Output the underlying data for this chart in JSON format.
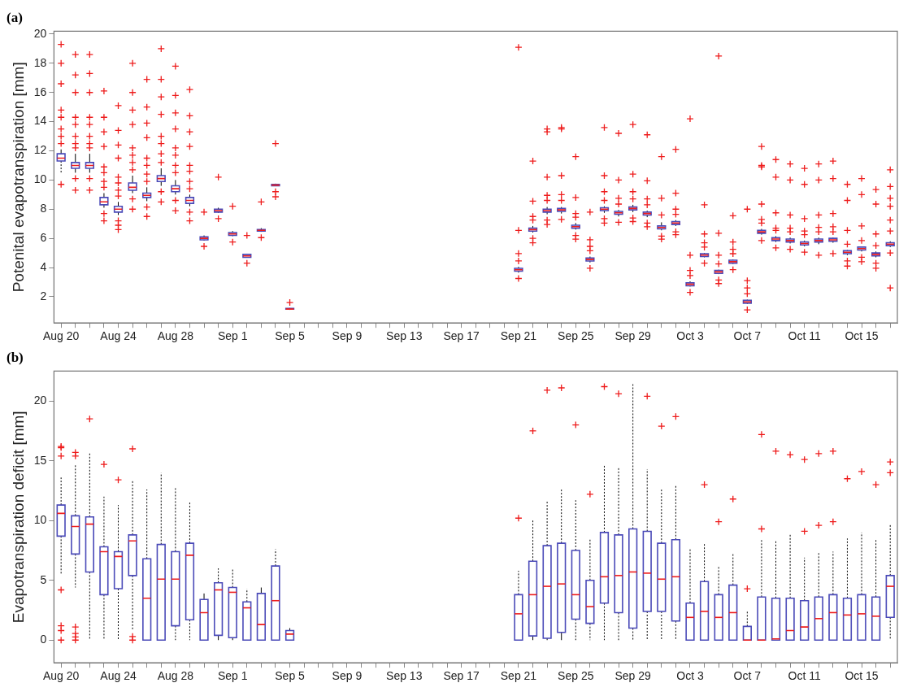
{
  "chart_data": [
    {
      "type": "box",
      "title": "(a)",
      "ylabel": "Potenital evapotranspiration [mm]",
      "color": "#4a4ab8",
      "ylim": [
        0.2,
        20.2
      ],
      "yticks": [
        2,
        4,
        6,
        8,
        10,
        12,
        14,
        16,
        18,
        20
      ],
      "categories": [
        "Aug 20",
        null,
        null,
        null,
        "Aug 24",
        null,
        null,
        null,
        "Aug 28",
        null,
        null,
        null,
        "Sep 1",
        null,
        null,
        null,
        "Sep 5",
        null,
        null,
        null,
        "Sep 9",
        null,
        null,
        null,
        "Sep 13",
        null,
        null,
        null,
        "Sep 17",
        null,
        null,
        null,
        "Sep 21",
        null,
        null,
        null,
        "Sep 25",
        null,
        null,
        null,
        "Sep 29",
        null,
        null,
        null,
        "Oct 3",
        null,
        null,
        null,
        "Oct 7",
        null,
        null,
        null,
        "Oct 11",
        null,
        null,
        null,
        "Oct 15",
        null,
        null
      ],
      "boxes": [
        {
          "low": 10.5,
          "q1": 11.3,
          "median": 11.5,
          "q3": 11.8,
          "high": 12.1,
          "outliers": [
            19.3,
            18.0,
            16.6,
            14.8,
            14.3,
            13.5,
            13.0,
            12.5,
            9.7
          ]
        },
        {
          "low": 10.5,
          "q1": 10.8,
          "median": 11.0,
          "q3": 11.2,
          "high": 11.8,
          "outliers": [
            18.6,
            17.2,
            16.0,
            14.3,
            13.8,
            13.0,
            12.5,
            12.2,
            10.1,
            9.3
          ]
        },
        {
          "low": 10.5,
          "q1": 10.8,
          "median": 11.0,
          "q3": 11.2,
          "high": 11.8,
          "outliers": [
            18.6,
            17.3,
            16.0,
            14.3,
            13.8,
            13.0,
            12.5,
            12.2,
            10.1,
            9.3
          ]
        },
        {
          "low": 8.1,
          "q1": 8.3,
          "median": 8.5,
          "q3": 8.8,
          "high": 9.1,
          "outliers": [
            16.1,
            14.3,
            13.3,
            12.3,
            10.9,
            10.5,
            9.9,
            9.5,
            7.7,
            7.2
          ]
        },
        {
          "low": 7.6,
          "q1": 7.8,
          "median": 8.0,
          "q3": 8.2,
          "high": 8.5,
          "outliers": [
            15.1,
            13.4,
            12.4,
            11.5,
            10.2,
            9.8,
            9.3,
            8.9,
            7.2,
            6.9,
            6.6
          ]
        },
        {
          "low": 9.1,
          "q1": 9.3,
          "median": 9.5,
          "q3": 9.8,
          "high": 10.3,
          "outliers": [
            18.0,
            16.0,
            14.8,
            13.8,
            12.2,
            11.7,
            11.2,
            10.7,
            8.7,
            8.0
          ]
        },
        {
          "low": 8.55,
          "q1": 8.8,
          "median": 8.95,
          "q3": 9.1,
          "high": 9.5,
          "outliers": [
            16.9,
            15.0,
            13.9,
            12.9,
            11.5,
            11.0,
            10.4,
            9.9,
            8.15,
            7.5
          ]
        },
        {
          "low": 9.6,
          "q1": 9.9,
          "median": 10.1,
          "q3": 10.3,
          "high": 10.8,
          "outliers": [
            19.0,
            16.9,
            15.7,
            14.5,
            13.0,
            12.5,
            11.8,
            11.2,
            9.2,
            8.5
          ]
        },
        {
          "low": 9.0,
          "q1": 9.2,
          "median": 9.4,
          "q3": 9.6,
          "high": 10.0,
          "outliers": [
            17.8,
            15.8,
            14.6,
            13.5,
            12.2,
            11.7,
            11.0,
            10.5,
            8.6,
            7.9
          ]
        },
        {
          "low": 8.2,
          "q1": 8.4,
          "median": 8.6,
          "q3": 8.8,
          "high": 9.0,
          "outliers": [
            16.2,
            14.4,
            13.3,
            12.3,
            11.0,
            10.6,
            9.9,
            9.4,
            7.8,
            7.2
          ]
        },
        {
          "low": 5.85,
          "q1": 5.9,
          "median": 6.0,
          "q3": 6.1,
          "high": 6.2,
          "outliers": [
            7.8,
            5.45
          ]
        },
        {
          "low": 7.75,
          "q1": 7.8,
          "median": 7.9,
          "q3": 8.0,
          "high": 8.1,
          "outliers": [
            10.2,
            7.35
          ]
        },
        {
          "low": 6.15,
          "q1": 6.2,
          "median": 6.3,
          "q3": 6.4,
          "high": 6.5,
          "outliers": [
            8.2,
            5.75
          ]
        },
        {
          "low": 4.68,
          "q1": 4.7,
          "median": 4.8,
          "q3": 4.9,
          "high": 4.95,
          "outliers": [
            6.2,
            4.3
          ]
        },
        {
          "low": 6.45,
          "q1": 6.5,
          "median": 6.55,
          "q3": 6.6,
          "high": 6.7,
          "outliers": [
            8.5,
            6.05
          ]
        },
        {
          "low": 9.58,
          "q1": 9.6,
          "median": 9.65,
          "q3": 9.7,
          "high": 9.75,
          "outliers": [
            12.5,
            9.2,
            8.85
          ]
        },
        {
          "low": 1.1,
          "q1": 1.15,
          "median": 1.15,
          "q3": 1.2,
          "high": 1.22,
          "outliers": [
            1.6
          ]
        },
        null,
        null,
        null,
        null,
        null,
        null,
        null,
        null,
        null,
        null,
        null,
        null,
        null,
        null,
        null,
        {
          "low": 3.65,
          "q1": 3.75,
          "median": 3.85,
          "q3": 3.95,
          "high": 4.05,
          "outliers": [
            19.1,
            6.55,
            4.96,
            4.45,
            3.25
          ]
        },
        {
          "low": 6.4,
          "q1": 6.5,
          "median": 6.6,
          "q3": 6.7,
          "high": 6.85,
          "outliers": [
            11.3,
            8.55,
            7.5,
            7.25,
            6.0,
            5.7
          ]
        },
        {
          "low": 7.65,
          "q1": 7.8,
          "median": 7.9,
          "q3": 8.0,
          "high": 8.15,
          "outliers": [
            13.5,
            13.3,
            10.2,
            8.95,
            8.6,
            7.25,
            6.95
          ]
        },
        {
          "low": 7.7,
          "q1": 7.85,
          "median": 7.95,
          "q3": 8.05,
          "high": 8.15,
          "outliers": [
            13.6,
            13.5,
            10.3,
            9.0,
            8.6,
            7.3
          ]
        },
        {
          "low": 6.6,
          "q1": 6.7,
          "median": 6.8,
          "q3": 6.9,
          "high": 7.05,
          "outliers": [
            11.6,
            8.8,
            7.7,
            7.45,
            6.2,
            5.95
          ]
        },
        {
          "low": 4.35,
          "q1": 4.45,
          "median": 4.55,
          "q3": 4.65,
          "high": 4.75,
          "outliers": [
            7.8,
            5.9,
            5.45,
            5.15,
            3.95
          ]
        },
        {
          "low": 7.75,
          "q1": 7.9,
          "median": 8.0,
          "q3": 8.1,
          "high": 8.2,
          "outliers": [
            13.6,
            10.3,
            9.2,
            8.6,
            7.35,
            7.05
          ]
        },
        {
          "low": 7.5,
          "q1": 7.65,
          "median": 7.75,
          "q3": 7.85,
          "high": 7.95,
          "outliers": [
            13.2,
            10.0,
            8.75,
            8.35,
            7.1
          ]
        },
        {
          "low": 7.8,
          "q1": 7.95,
          "median": 8.05,
          "q3": 8.15,
          "high": 8.3,
          "outliers": [
            13.8,
            10.4,
            9.2,
            8.7,
            7.4,
            7.15
          ]
        },
        {
          "low": 7.45,
          "q1": 7.6,
          "median": 7.7,
          "q3": 7.8,
          "high": 7.9,
          "outliers": [
            13.1,
            9.95,
            8.7,
            8.3,
            7.05,
            6.8
          ]
        },
        {
          "low": 6.55,
          "q1": 6.65,
          "median": 6.75,
          "q3": 6.85,
          "high": 7.1,
          "outliers": [
            11.6,
            8.75,
            7.6,
            6.15,
            5.95
          ]
        },
        {
          "low": 6.85,
          "q1": 6.95,
          "median": 7.05,
          "q3": 7.15,
          "high": 7.25,
          "outliers": [
            12.1,
            9.1,
            8.0,
            7.65,
            6.45,
            6.25
          ]
        },
        {
          "low": 2.7,
          "q1": 2.75,
          "median": 2.85,
          "q3": 2.95,
          "high": 3.05,
          "outliers": [
            14.2,
            4.85,
            3.8,
            3.45,
            2.3
          ]
        },
        {
          "low": 4.7,
          "q1": 4.75,
          "median": 4.85,
          "q3": 4.95,
          "high": 5.0,
          "outliers": [
            8.3,
            6.3,
            5.7,
            5.4,
            4.3
          ]
        },
        {
          "low": 3.55,
          "q1": 3.6,
          "median": 3.7,
          "q3": 3.8,
          "high": 3.85,
          "outliers": [
            18.5,
            6.35,
            4.85,
            4.25,
            3.15,
            2.9
          ]
        },
        {
          "low": 4.25,
          "q1": 4.3,
          "median": 4.4,
          "q3": 4.5,
          "high": 4.55,
          "outliers": [
            7.55,
            5.75,
            5.25,
            4.95,
            3.85
          ]
        },
        {
          "low": 1.5,
          "q1": 1.55,
          "median": 1.65,
          "q3": 1.75,
          "high": 1.8,
          "outliers": [
            8.0,
            3.1,
            2.6,
            2.2,
            1.1
          ]
        },
        {
          "low": 6.25,
          "q1": 6.35,
          "median": 6.45,
          "q3": 6.55,
          "high": 6.65,
          "outliers": [
            12.3,
            11.0,
            10.9,
            8.35,
            7.3,
            7.05,
            5.85
          ]
        },
        {
          "low": 5.75,
          "q1": 5.85,
          "median": 5.95,
          "q3": 6.05,
          "high": 6.15,
          "outliers": [
            11.4,
            10.2,
            7.75,
            6.7,
            6.55,
            5.35
          ]
        },
        {
          "low": 5.65,
          "q1": 5.75,
          "median": 5.85,
          "q3": 5.95,
          "high": 6.05,
          "outliers": [
            11.1,
            10.0,
            7.6,
            6.7,
            6.45,
            5.25
          ]
        },
        {
          "low": 5.45,
          "q1": 5.55,
          "median": 5.65,
          "q3": 5.75,
          "high": 5.85,
          "outliers": [
            10.8,
            9.7,
            7.35,
            6.5,
            6.25,
            5.05
          ]
        },
        {
          "low": 5.6,
          "q1": 5.75,
          "median": 5.85,
          "q3": 5.95,
          "high": 6.05,
          "outliers": [
            11.1,
            10.0,
            7.6,
            6.75,
            6.45,
            4.85
          ]
        },
        {
          "low": 5.7,
          "q1": 5.8,
          "median": 5.9,
          "q3": 6.0,
          "high": 6.05,
          "outliers": [
            11.3,
            10.1,
            7.7,
            6.8,
            6.45,
            4.96
          ]
        },
        {
          "low": 4.85,
          "q1": 4.95,
          "median": 5.05,
          "q3": 5.15,
          "high": 5.2,
          "outliers": [
            9.7,
            8.6,
            6.55,
            5.6,
            4.45,
            4.1
          ]
        },
        {
          "low": 5.1,
          "q1": 5.2,
          "median": 5.3,
          "q3": 5.4,
          "high": 5.45,
          "outliers": [
            10.1,
            9.0,
            6.85,
            5.85,
            4.7,
            4.4
          ]
        },
        {
          "low": 4.7,
          "q1": 4.8,
          "median": 4.9,
          "q3": 5.0,
          "high": 5.1,
          "outliers": [
            9.35,
            8.35,
            6.3,
            5.5,
            4.3,
            3.95
          ]
        },
        {
          "low": 5.4,
          "q1": 5.5,
          "median": 5.6,
          "q3": 5.7,
          "high": 5.8,
          "outliers": [
            10.7,
            9.55,
            8.75,
            8.2,
            7.25,
            6.5,
            5.0,
            2.6
          ]
        }
      ]
    },
    {
      "type": "box",
      "title": "(b)",
      "ylabel": "Evapotranspiration deficit [mm]",
      "color": "#4a4ab8",
      "ylim": [
        -1.9,
        22.5
      ],
      "yticks": [
        0,
        5,
        10,
        15,
        20
      ],
      "categories": [
        "Aug 20",
        null,
        null,
        null,
        "Aug 24",
        null,
        null,
        null,
        "Aug 28",
        null,
        null,
        null,
        "Sep 1",
        null,
        null,
        null,
        "Sep 5",
        null,
        null,
        null,
        "Sep 9",
        null,
        null,
        null,
        "Sep 13",
        null,
        null,
        null,
        "Sep 17",
        null,
        null,
        null,
        "Sep 21",
        null,
        null,
        null,
        "Sep 25",
        null,
        null,
        null,
        "Sep 29",
        null,
        null,
        null,
        "Oct 3",
        null,
        null,
        null,
        "Oct 7",
        null,
        null,
        null,
        "Oct 11",
        null,
        null,
        null,
        "Oct 15",
        null,
        null
      ],
      "boxes": [
        {
          "low": 5.5,
          "q1": 8.7,
          "median": 10.6,
          "q3": 11.3,
          "high": 13.6,
          "outliers": [
            16.2,
            16.1,
            15.4,
            4.2,
            1.2,
            0.8,
            0
          ]
        },
        {
          "low": 4.4,
          "q1": 7.2,
          "median": 9.5,
          "q3": 10.4,
          "high": 14.7,
          "outliers": [
            15.7,
            15.4,
            1.1,
            0.55,
            0.27,
            0
          ]
        },
        {
          "low": 0,
          "q1": 5.7,
          "median": 9.7,
          "q3": 10.3,
          "high": 15.7,
          "outliers": [
            18.5
          ]
        },
        {
          "low": 0,
          "q1": 3.8,
          "median": 7.4,
          "q3": 7.8,
          "high": 12.0,
          "outliers": [
            14.7
          ]
        },
        {
          "low": 0,
          "q1": 4.3,
          "median": 7.0,
          "q3": 7.4,
          "high": 11.3,
          "outliers": [
            13.4
          ]
        },
        {
          "low": 0.9,
          "q1": 5.4,
          "median": 8.3,
          "q3": 8.8,
          "high": 13.4,
          "outliers": [
            16.0,
            0.3,
            0
          ]
        },
        {
          "low": 0,
          "q1": 0,
          "median": 3.5,
          "q3": 6.8,
          "high": 12.6
        },
        {
          "low": 0,
          "q1": 0,
          "median": 5.1,
          "q3": 8.0,
          "high": 14.0
        },
        {
          "low": 0,
          "q1": 1.2,
          "median": 5.1,
          "q3": 7.4,
          "high": 12.8
        },
        {
          "low": 0,
          "q1": 1.7,
          "median": 7.1,
          "q3": 8.1,
          "high": 11.6
        },
        {
          "low": 0,
          "q1": 0,
          "median": 2.3,
          "q3": 3.4,
          "high": 3.9
        },
        {
          "low": 0,
          "q1": 0.4,
          "median": 4.2,
          "q3": 4.8,
          "high": 6.0
        },
        {
          "low": 0,
          "q1": 0.2,
          "median": 4.0,
          "q3": 4.4,
          "high": 6.0
        },
        {
          "low": 0,
          "q1": 0,
          "median": 2.7,
          "q3": 3.2,
          "high": 4.3
        },
        {
          "low": 0,
          "q1": 0,
          "median": 1.3,
          "q3": 3.9,
          "high": 4.4
        },
        {
          "low": 0,
          "q1": 0,
          "median": 3.3,
          "q3": 6.2,
          "high": 7.6
        },
        {
          "low": 0,
          "q1": 0,
          "median": 0.5,
          "q3": 0.8,
          "high": 1.0
        },
        null,
        null,
        null,
        null,
        null,
        null,
        null,
        null,
        null,
        null,
        null,
        null,
        null,
        null,
        null,
        {
          "low": 0,
          "q1": 0,
          "median": 2.2,
          "q3": 3.8,
          "high": 5.8,
          "outliers": [
            10.2
          ]
        },
        {
          "low": 0,
          "q1": 0.35,
          "median": 3.8,
          "q3": 6.6,
          "high": 10.0,
          "outliers": [
            17.5
          ]
        },
        {
          "low": 0,
          "q1": 0.15,
          "median": 4.5,
          "q3": 7.9,
          "high": 11.7,
          "outliers": [
            20.9
          ]
        },
        {
          "low": 0,
          "q1": 0.65,
          "median": 4.7,
          "q3": 8.1,
          "high": 12.7,
          "outliers": [
            21.1
          ]
        },
        {
          "low": 0,
          "q1": 1.75,
          "median": 3.8,
          "q3": 7.5,
          "high": 11.7,
          "outliers": [
            18.0
          ]
        },
        {
          "low": 0,
          "q1": 1.4,
          "median": 2.8,
          "q3": 5.0,
          "high": 8.4,
          "outliers": [
            12.2
          ]
        },
        {
          "low": 0,
          "q1": 3.1,
          "median": 5.3,
          "q3": 9.0,
          "high": 14.6,
          "outliers": [
            21.2
          ]
        },
        {
          "low": 0,
          "q1": 2.3,
          "median": 5.4,
          "q3": 8.8,
          "high": 14.5,
          "outliers": [
            20.6
          ]
        },
        {
          "low": 0,
          "q1": 1.0,
          "median": 5.7,
          "q3": 9.3,
          "high": 21.4
        },
        {
          "low": 0,
          "q1": 2.4,
          "median": 5.6,
          "q3": 9.1,
          "high": 14.3,
          "outliers": [
            20.4
          ]
        },
        {
          "low": 0,
          "q1": 2.4,
          "median": 5.1,
          "q3": 8.1,
          "high": 12.6,
          "outliers": [
            17.9
          ]
        },
        {
          "low": 0,
          "q1": 1.6,
          "median": 5.3,
          "q3": 8.4,
          "high": 13.0,
          "outliers": [
            18.7
          ]
        },
        {
          "low": 0,
          "q1": 0,
          "median": 1.9,
          "q3": 3.1,
          "high": 7.6
        },
        {
          "low": 0,
          "q1": 0,
          "median": 2.4,
          "q3": 4.9,
          "high": 8.1,
          "outliers": [
            13.0
          ]
        },
        {
          "low": 0,
          "q1": 0,
          "median": 1.9,
          "q3": 3.8,
          "high": 6.2,
          "outliers": [
            9.9
          ]
        },
        {
          "low": 0,
          "q1": 0,
          "median": 2.3,
          "q3": 4.6,
          "high": 7.3,
          "outliers": [
            11.8
          ]
        },
        {
          "low": 0,
          "q1": 0,
          "median": 0,
          "q3": 1.15,
          "high": 2.4,
          "outliers": [
            4.3
          ]
        },
        {
          "low": 0,
          "q1": 0,
          "median": 0,
          "q3": 3.6,
          "high": 8.4,
          "outliers": [
            17.2,
            9.3
          ]
        },
        {
          "low": 0,
          "q1": 0,
          "median": 0.1,
          "q3": 3.5,
          "high": 8.3,
          "outliers": [
            15.8
          ]
        },
        {
          "low": 0,
          "q1": 0,
          "median": 0.8,
          "q3": 3.5,
          "high": 8.9,
          "outliers": [
            15.5
          ]
        },
        {
          "low": 0,
          "q1": 0,
          "median": 1.1,
          "q3": 3.3,
          "high": 6.9,
          "outliers": [
            15.1,
            9.1
          ]
        },
        {
          "low": 0,
          "q1": 0,
          "median": 1.8,
          "q3": 3.6,
          "high": 7.3,
          "outliers": [
            15.6,
            9.6
          ]
        },
        {
          "low": 0,
          "q1": 0,
          "median": 2.3,
          "q3": 3.8,
          "high": 7.4,
          "outliers": [
            15.8,
            9.9
          ]
        },
        {
          "low": 0,
          "q1": 0,
          "median": 2.1,
          "q3": 3.5,
          "high": 8.5,
          "outliers": [
            13.5
          ]
        },
        {
          "low": 0,
          "q1": 0,
          "median": 2.2,
          "q3": 3.8,
          "high": 9.0,
          "outliers": [
            14.1
          ]
        },
        {
          "low": 0,
          "q1": 0,
          "median": 2.0,
          "q3": 3.6,
          "high": 8.4,
          "outliers": [
            13.0
          ]
        },
        {
          "low": 0,
          "q1": 1.9,
          "median": 4.5,
          "q3": 5.4,
          "high": 9.7,
          "outliers": [
            14.9,
            14.0
          ]
        }
      ]
    }
  ]
}
